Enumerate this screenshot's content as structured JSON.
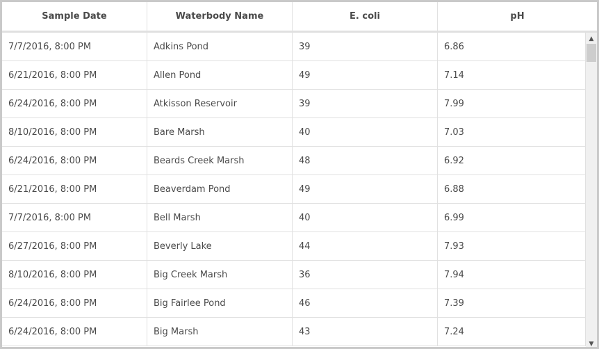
{
  "table": {
    "columns": [
      "Sample Date",
      "Waterbody Name",
      "E. coli",
      "pH"
    ],
    "rows": [
      [
        "7/7/2016, 8:00 PM",
        "Adkins Pond",
        "39",
        "6.86"
      ],
      [
        "6/21/2016, 8:00 PM",
        "Allen Pond",
        "49",
        "7.14"
      ],
      [
        "6/24/2016, 8:00 PM",
        "Atkisson Reservoir",
        "39",
        "7.99"
      ],
      [
        "8/10/2016, 8:00 PM",
        "Bare Marsh",
        "40",
        "7.03"
      ],
      [
        "6/24/2016, 8:00 PM",
        "Beards Creek Marsh",
        "48",
        "6.92"
      ],
      [
        "6/21/2016, 8:00 PM",
        "Beaverdam Pond",
        "49",
        "6.88"
      ],
      [
        "7/7/2016, 8:00 PM",
        "Bell Marsh",
        "40",
        "6.99"
      ],
      [
        "6/27/2016, 8:00 PM",
        "Beverly Lake",
        "44",
        "7.93"
      ],
      [
        "8/10/2016, 8:00 PM",
        "Big Creek Marsh",
        "36",
        "7.94"
      ],
      [
        "6/24/2016, 8:00 PM",
        "Big Fairlee Pond",
        "46",
        "7.39"
      ],
      [
        "6/24/2016, 8:00 PM",
        "Big Marsh",
        "43",
        "7.24"
      ]
    ]
  },
  "scrollbar": {
    "up_icon": "chevron-up-icon",
    "down_icon": "chevron-down-icon",
    "position": 0
  }
}
